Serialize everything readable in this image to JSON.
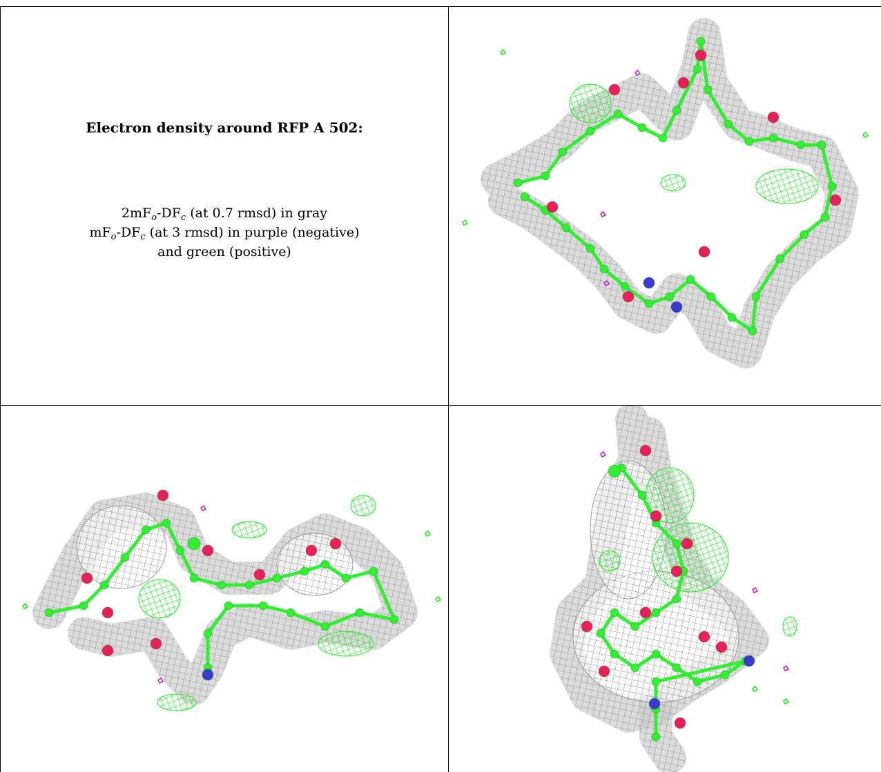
{
  "caption": {
    "title": "Electron density around RFP A 502:",
    "line1": {
      "a": "2mF",
      "a_sub": "o",
      "b": "-DF",
      "b_sub": "c",
      "rest": " (at 0.7 rmsd) in gray"
    },
    "line2": {
      "a": "mF",
      "a_sub": "o",
      "b": "-DF",
      "b_sub": "c",
      "rest": " (at 3 rmsd) in purple (negative)"
    },
    "line3": "and green (positive)"
  },
  "colors": {
    "mesh_gray": "#9a9a9a",
    "carbon_green": "#33ee33",
    "oxygen_red": "#e8205a",
    "nitrogen_blue": "#3a3acc",
    "positive_green": "#22ee22",
    "negative_purple": "#cc22cc"
  },
  "views": [
    "view-top-right",
    "view-bottom-left",
    "view-bottom-right"
  ]
}
